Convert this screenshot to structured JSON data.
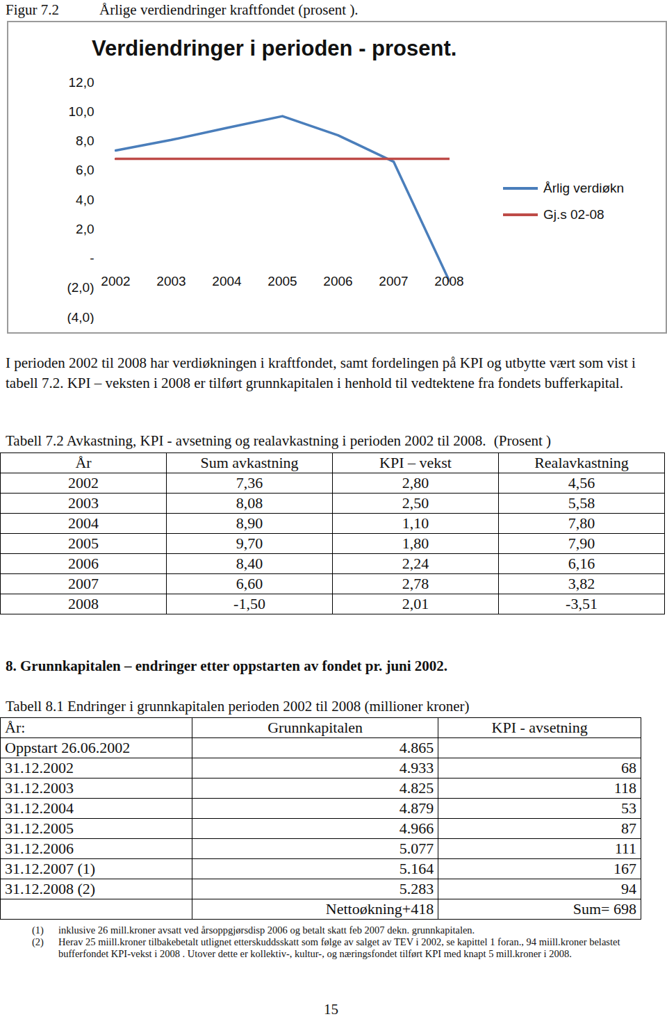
{
  "figure_caption": {
    "label": "Figur 7.2",
    "text": "Årlige verdiendringer kraftfondet (prosent )."
  },
  "chart_data": {
    "type": "line",
    "title": "Verdiendringer i perioden - prosent.",
    "categories": [
      "2002",
      "2003",
      "2004",
      "2005",
      "2006",
      "2007",
      "2008"
    ],
    "series": [
      {
        "name": "Årlig verdiøkn",
        "color": "#4a7ebb",
        "values": [
          7.36,
          8.08,
          8.9,
          9.7,
          8.4,
          6.6,
          -1.5
        ]
      },
      {
        "name": "Gj.s 02-08",
        "color": "#be4b48",
        "values": [
          6.79,
          6.79,
          6.79,
          6.79,
          6.79,
          6.79,
          6.79
        ]
      }
    ],
    "ylim": [
      -4,
      12
    ],
    "yticks": [
      {
        "value": 12,
        "label": "12,0"
      },
      {
        "value": 10,
        "label": "10,0"
      },
      {
        "value": 8,
        "label": "8,0"
      },
      {
        "value": 6,
        "label": "6,0"
      },
      {
        "value": 4,
        "label": "4,0"
      },
      {
        "value": 2,
        "label": "2,0"
      },
      {
        "value": 0,
        "label": "-"
      },
      {
        "value": -2,
        "label": "(2,0)"
      },
      {
        "value": -4,
        "label": "(4,0)"
      }
    ],
    "grid": false,
    "legend": "right"
  },
  "paragraph": "I perioden 2002 til 2008 har verdiøkningen i kraftfondet, samt fordelingen på KPI og utbytte vært som vist i tabell 7.2. KPI – veksten i 2008 er tilført grunnkapitalen i henhold til vedtektene fra fondets bufferkapital.",
  "table_7_2": {
    "title": "Tabell 7.2 Avkastning, KPI - avsetning og realavkastning i perioden 2002 til 2008.",
    "unit": "(Prosent )",
    "header": [
      "År",
      "Sum avkastning",
      "KPI – vekst",
      "Realavkastning"
    ],
    "rows": [
      [
        "2002",
        "7,36",
        "2,80",
        "4,56"
      ],
      [
        "2003",
        "8,08",
        "2,50",
        "5,58"
      ],
      [
        "2004",
        "8,90",
        "1,10",
        "7,80"
      ],
      [
        "2005",
        "9,70",
        "1,80",
        "7,90"
      ],
      [
        "2006",
        "8,40",
        "2,24",
        "6,16"
      ],
      [
        "2007",
        "6,60",
        "2,78",
        "3,82"
      ],
      [
        "2008",
        "-1,50",
        "2,01",
        "-3,51"
      ]
    ]
  },
  "section_heading": "8. Grunnkapitalen – endringer etter oppstarten av fondet pr. juni 2002.",
  "table_8_1": {
    "title": "Tabell 8.1 Endringer i grunnkapitalen perioden 2002 til 2008 (millioner kroner)",
    "header": [
      "År:",
      "Grunnkapitalen",
      "KPI - avsetning"
    ],
    "rows": [
      [
        "Oppstart 26.06.2002",
        "4.865",
        null
      ],
      [
        "31.12.2002",
        "4.933",
        "68"
      ],
      [
        "31.12.2003",
        "4.825",
        "118"
      ],
      [
        "31.12.2004",
        "4.879",
        "53"
      ],
      [
        "31.12.2005",
        "4.966",
        "87"
      ],
      [
        "31.12.2006",
        "5.077",
        "111"
      ],
      [
        "31.12.2007 (1)",
        "5.164",
        "167"
      ],
      [
        "31.12.2008 (2)",
        "5.283",
        "94"
      ],
      [
        null,
        "Nettoøkning+418",
        "Sum= 698"
      ]
    ]
  },
  "footnotes": [
    {
      "key": "(1)",
      "text": "inklusive 26 mill.kroner avsatt ved årsoppgjørsdisp 2006 og betalt skatt feb 2007 dekn. grunnkapitalen."
    },
    {
      "key": "(2)",
      "text": "Herav 25 miill.kroner tilbakebetalt utlignet etterskuddsskatt som følge av salget av TEV i 2002, se kapittel 1 foran., 94 miill.kroner belastet bufferfondet KPI-vekst i 2008 . Utover dette er kollektiv-, kultur-, og næringsfondet tilført KPI med knapt 5 mill.kroner i 2008."
    }
  ],
  "page_number": "15"
}
